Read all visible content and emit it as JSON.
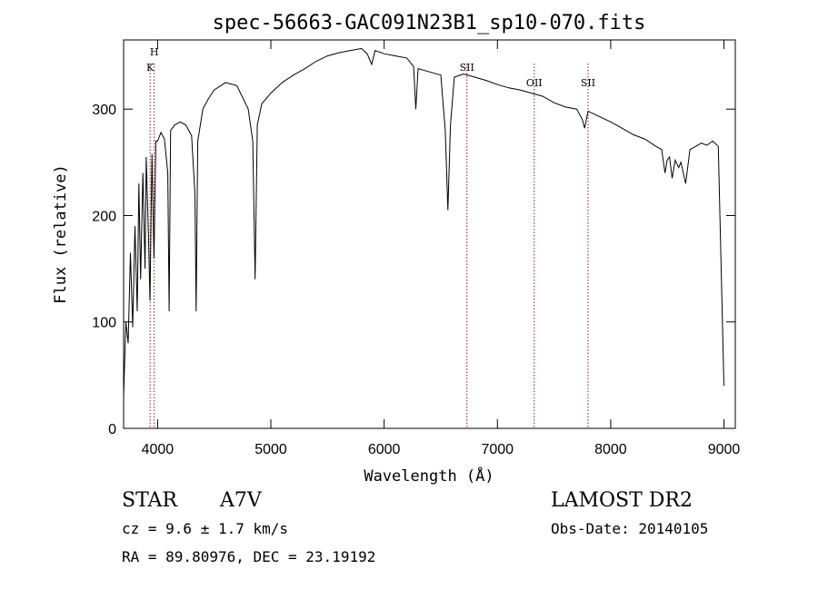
{
  "chart_data": {
    "type": "line",
    "title": "spec-56663-GAC091N23B1_sp10-070.fits",
    "xlabel": "Wavelength (Å)",
    "ylabel": "Flux (relative)",
    "xlim": [
      3700,
      9100
    ],
    "ylim": [
      0,
      365
    ],
    "x_ticks": [
      4000,
      5000,
      6000,
      7000,
      8000,
      9000
    ],
    "y_ticks": [
      0,
      100,
      200,
      300
    ],
    "grid": false,
    "legend": "none",
    "line_color": "#000000",
    "marker_color": "#8b1a1a",
    "series": [
      {
        "x": [
          3700,
          3720,
          3740,
          3760,
          3780,
          3800,
          3820,
          3835,
          3850,
          3870,
          3889,
          3900,
          3920,
          3933,
          3950,
          3968,
          3985,
          4000,
          4030,
          4060,
          4090,
          4102,
          4115,
          4150,
          4200,
          4250,
          4300,
          4330,
          4340,
          4355,
          4400,
          4450,
          4500,
          4600,
          4700,
          4800,
          4840,
          4861,
          4880,
          4920,
          5000,
          5100,
          5200,
          5300,
          5400,
          5500,
          5600,
          5700,
          5800,
          5850,
          5890,
          5920,
          6000,
          6100,
          6200,
          6260,
          6280,
          6300,
          6400,
          6500,
          6540,
          6563,
          6585,
          6620,
          6700,
          6800,
          6900,
          7000,
          7100,
          7200,
          7300,
          7400,
          7500,
          7600,
          7700,
          7750,
          7770,
          7800,
          7900,
          8000,
          8100,
          8200,
          8300,
          8400,
          8450,
          8480,
          8498,
          8520,
          8542,
          8570,
          8600,
          8620,
          8662,
          8700,
          8750,
          8800,
          8850,
          8900,
          8950,
          9000
        ],
        "y": [
          30,
          100,
          80,
          165,
          95,
          190,
          110,
          230,
          140,
          240,
          150,
          255,
          180,
          120,
          258,
          160,
          270,
          270,
          278,
          272,
          240,
          110,
          280,
          285,
          288,
          285,
          275,
          220,
          110,
          270,
          300,
          310,
          318,
          325,
          322,
          300,
          270,
          140,
          285,
          305,
          315,
          325,
          332,
          338,
          345,
          350,
          353,
          355,
          357,
          352,
          342,
          355,
          352,
          350,
          348,
          340,
          300,
          338,
          335,
          332,
          280,
          205,
          285,
          330,
          333,
          330,
          327,
          323,
          320,
          318,
          315,
          312,
          306,
          302,
          300,
          290,
          282,
          298,
          293,
          288,
          282,
          276,
          272,
          265,
          262,
          240,
          252,
          255,
          235,
          252,
          245,
          250,
          230,
          262,
          265,
          268,
          266,
          270,
          265,
          40
        ]
      }
    ],
    "line_markers": [
      {
        "label": "H",
        "x": 3970,
        "label_level": "upper"
      },
      {
        "label": "K",
        "x": 3934,
        "label_level": "lower"
      },
      {
        "label": "SII",
        "x": 6731,
        "label_level": "middle"
      },
      {
        "label": "OII",
        "x": 7325,
        "label_level": "middle2"
      },
      {
        "label": "SII",
        "x": 7800,
        "label_level": "middle2"
      }
    ]
  },
  "info": {
    "class": "STAR",
    "subclass": "A7V",
    "survey": "LAMOST DR2",
    "cz": "cz = 9.6 ± 1.7 km/s",
    "obs_date": "Obs-Date: 20140105",
    "coords": "RA =  89.80976, DEC =  23.19192"
  }
}
